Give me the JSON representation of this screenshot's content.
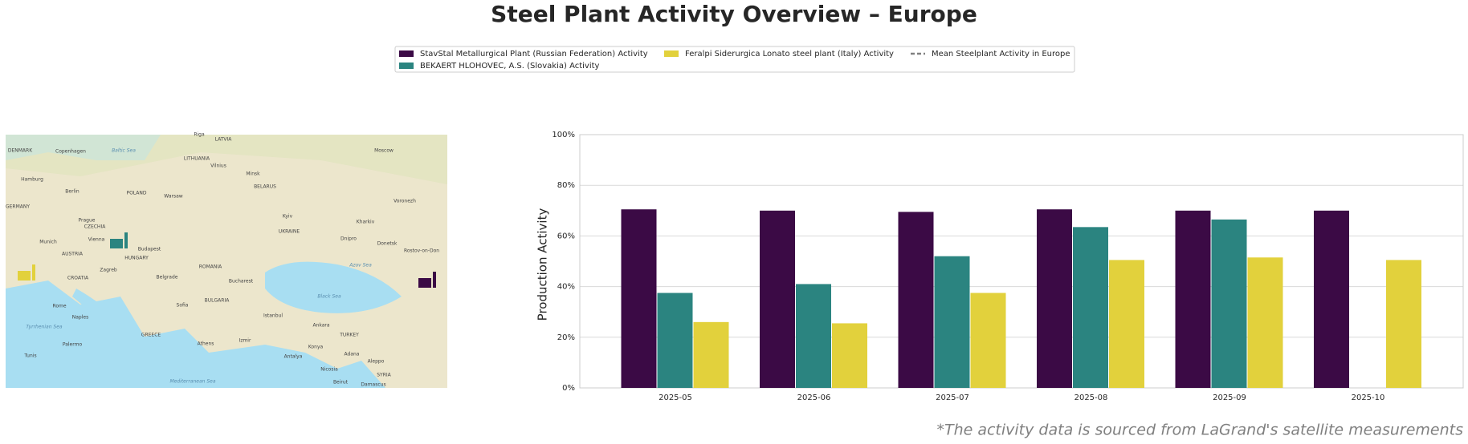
{
  "chart_data": {
    "type": "bar",
    "title": "Steel Plant Activity Overview – Europe",
    "y_label": "Production Activity",
    "footnote": "*The activity data is sourced from LaGrand's satellite measurements",
    "categories": [
      "2025-05",
      "2025-06",
      "2025-07",
      "2025-08",
      "2025-09",
      "2025-10"
    ],
    "series": [
      {
        "name": "StavStal Metallurgical Plant (Russian Federation) Activity",
        "color": "#3b0a45",
        "values": [
          70.5,
          70,
          69.5,
          70.5,
          70,
          70
        ]
      },
      {
        "name": "BEKAERT HLOHOVEC, A.S. (Slovakia) Activity",
        "color": "#2b8480",
        "values": [
          37.5,
          41,
          52,
          63.5,
          66.5,
          null
        ]
      },
      {
        "name": "Feralpi Siderurgica Lonato steel plant (Italy) Activity",
        "color": "#e2d13c",
        "values": [
          26,
          25.5,
          37.5,
          50.5,
          51.5,
          50.5
        ]
      },
      {
        "name": "Mean Steelplant Activity in Europe",
        "color": "#808080",
        "line_style": "dashed",
        "values": [
          null,
          null,
          null,
          null,
          null,
          null
        ]
      }
    ],
    "ylim": [
      0,
      100
    ],
    "yticks": [
      {
        "value": 0,
        "label": "0%"
      },
      {
        "value": 20,
        "label": "20%"
      },
      {
        "value": 40,
        "label": "40%"
      },
      {
        "value": 60,
        "label": "60%"
      },
      {
        "value": 80,
        "label": "80%"
      },
      {
        "value": 100,
        "label": "100%"
      }
    ],
    "grid": true,
    "map_labels": [
      "Riga",
      "LATVIA",
      "Copenhagen",
      "Baltic Sea",
      "DENMARK",
      "LITHUANIA",
      "Vilnius",
      "Moscow",
      "Hamburg",
      "Minsk",
      "BELARUS",
      "Berlin",
      "POLAND",
      "Warsaw",
      "GERMANY",
      "Voronezh",
      "Kyiv",
      "Prague",
      "CZECHIA",
      "Kharkiv",
      "UKRAINE",
      "Munich",
      "Vienna",
      "Dnipro",
      "Donetsk",
      "AUSTRIA",
      "Budapest",
      "HUNGARY",
      "Rostov-on-Don",
      "Zagreb",
      "CROATIA",
      "ROMANIA",
      "Azov Sea",
      "Belgrade",
      "Bucharest",
      "Black Sea",
      "Rome",
      "BULGARIA",
      "Sofia",
      "Istanbul",
      "Tyrrhenian Sea",
      "Naples",
      "Ankara",
      "TURKEY",
      "GREECE",
      "Athens",
      "Izmir",
      "Palermo",
      "Konya",
      "Adana",
      "Tunis",
      "Antalya",
      "Aleppo",
      "Nicosia",
      "SYRIA",
      "Mediterranean Sea",
      "Beirut",
      "Damascus"
    ]
  }
}
